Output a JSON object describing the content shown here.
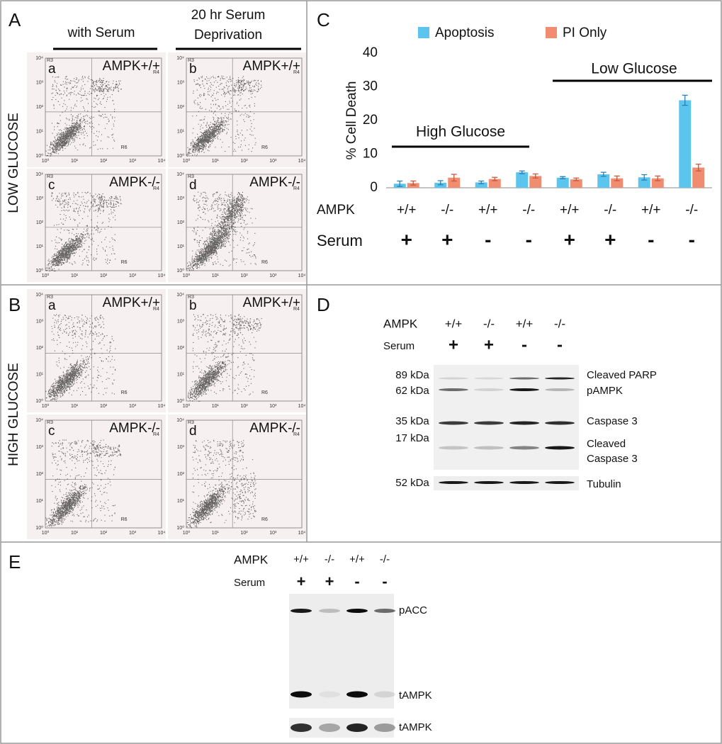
{
  "panel_A": {
    "label": "A",
    "row_label": "LOW GLUCOSE",
    "columns": [
      [
        "with Serum"
      ],
      [
        "20 hr Serum",
        "Deprivation"
      ]
    ],
    "plots": [
      {
        "letter": "a",
        "genotype": "AMPK+/+"
      },
      {
        "letter": "b",
        "genotype": "AMPK+/+"
      },
      {
        "letter": "c",
        "genotype": "AMPK-/-"
      },
      {
        "letter": "d",
        "genotype": "AMPK-/-"
      }
    ]
  },
  "panel_B": {
    "label": "B",
    "row_label": "HIGH GLUCOSE",
    "plots": [
      {
        "letter": "a",
        "genotype": "AMPK+/+"
      },
      {
        "letter": "b",
        "genotype": "AMPK+/+"
      },
      {
        "letter": "c",
        "genotype": "AMPK-/-"
      },
      {
        "letter": "d",
        "genotype": "AMPK-/-"
      }
    ]
  },
  "flow_axis": {
    "ticks": [
      "10⁰",
      "10¹",
      "10²",
      "10³",
      "10⁴"
    ],
    "gates": [
      "R3",
      "R4",
      "R6"
    ]
  },
  "chart_data": {
    "type": "bar",
    "label": "C",
    "y_label": "% Cell Death",
    "ylim": [
      0,
      40
    ],
    "yticks": [
      0,
      10,
      20,
      30,
      40
    ],
    "row_labels": [
      "AMPK",
      "Serum"
    ],
    "categories": [
      "+/+",
      "-/-",
      "+/+",
      "-/-",
      "+/+",
      "-/-",
      "+/+",
      "-/-"
    ],
    "serum": [
      "+",
      "+",
      "-",
      "-",
      "+",
      "+",
      "-",
      "-"
    ],
    "annotations": [
      "High Glucose",
      "Low Glucose"
    ],
    "series": [
      {
        "name": "Apoptosis",
        "color": "#5bc5ee",
        "values": [
          1.2,
          1.5,
          1.6,
          4.6,
          3.0,
          4.0,
          3.1,
          26
        ],
        "errors": [
          0.8,
          0.6,
          0.4,
          0.4,
          0.3,
          0.6,
          0.8,
          1.5
        ]
      },
      {
        "name": "PI Only",
        "color": "#f08d70",
        "values": [
          1.4,
          3.0,
          2.6,
          3.5,
          2.5,
          2.8,
          2.8,
          6.0
        ],
        "errors": [
          0.6,
          1.0,
          0.5,
          0.6,
          0.4,
          0.7,
          0.7,
          1.0
        ]
      }
    ]
  },
  "panel_D": {
    "label": "D",
    "row_labels": [
      "AMPK",
      "Serum"
    ],
    "genotypes": [
      "+/+",
      "-/-",
      "+/+",
      "-/-"
    ],
    "serum": [
      "+",
      "+",
      "-",
      "-"
    ],
    "sizes": [
      "89 kDa",
      "62 kDa",
      "35 kDa",
      "17 kDa",
      "52 kDa"
    ],
    "bands": [
      [
        "Cleaved PARP"
      ],
      [
        "pAMPK"
      ],
      [
        "Caspase 3"
      ],
      [
        "Cleaved",
        "Caspase 3"
      ],
      [
        "Tubulin"
      ]
    ]
  },
  "panel_E": {
    "label": "E",
    "row_labels": [
      "AMPK",
      "Serum"
    ],
    "genotypes": [
      "+/+",
      "-/-",
      "+/+",
      "-/-"
    ],
    "serum": [
      "+",
      "+",
      "-",
      "-"
    ],
    "bands": [
      "pACC",
      "tAMPK",
      "tAMPK"
    ]
  }
}
